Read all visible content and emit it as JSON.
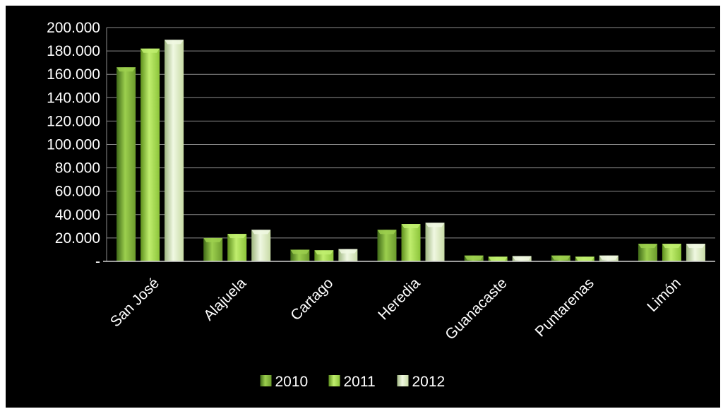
{
  "chart_data": {
    "type": "bar",
    "categories": [
      "San José",
      "Alajuela",
      "Cartago",
      "Heredia",
      "Guanacaste",
      "Puntarenas",
      "Limón"
    ],
    "series": [
      {
        "name": "2010",
        "values": [
          166000,
          20000,
          10000,
          27000,
          5000,
          5000,
          15000
        ]
      },
      {
        "name": "2011",
        "values": [
          182000,
          23500,
          9500,
          32000,
          4000,
          4000,
          15000
        ]
      },
      {
        "name": "2012",
        "values": [
          189500,
          27000,
          10500,
          33000,
          4500,
          5000,
          15000
        ]
      }
    ],
    "ylim": [
      0,
      200000
    ],
    "y_ticks": [
      {
        "value": 0,
        "label": "-"
      },
      {
        "value": 20000,
        "label": "20.000"
      },
      {
        "value": 40000,
        "label": "40.000"
      },
      {
        "value": 60000,
        "label": "60.000"
      },
      {
        "value": 80000,
        "label": "80.000"
      },
      {
        "value": 100000,
        "label": "100.000"
      },
      {
        "value": 120000,
        "label": "120.000"
      },
      {
        "value": 140000,
        "label": "140.000"
      },
      {
        "value": 160000,
        "label": "160.000"
      },
      {
        "value": 180000,
        "label": "180.000"
      },
      {
        "value": 200000,
        "label": "200.000"
      }
    ],
    "grid": true,
    "legend_position": "bottom",
    "colors": {
      "background": "#000000",
      "grid": "#8c8c8c",
      "series": [
        "#6b9a2c",
        "#8cc43a",
        "#c8dba6"
      ],
      "series_light": [
        "#9ccf4e",
        "#c0ee6e",
        "#f0f8e2"
      ],
      "series_dark": [
        "#3f6a17",
        "#5d8f1c",
        "#9fb780"
      ]
    }
  }
}
